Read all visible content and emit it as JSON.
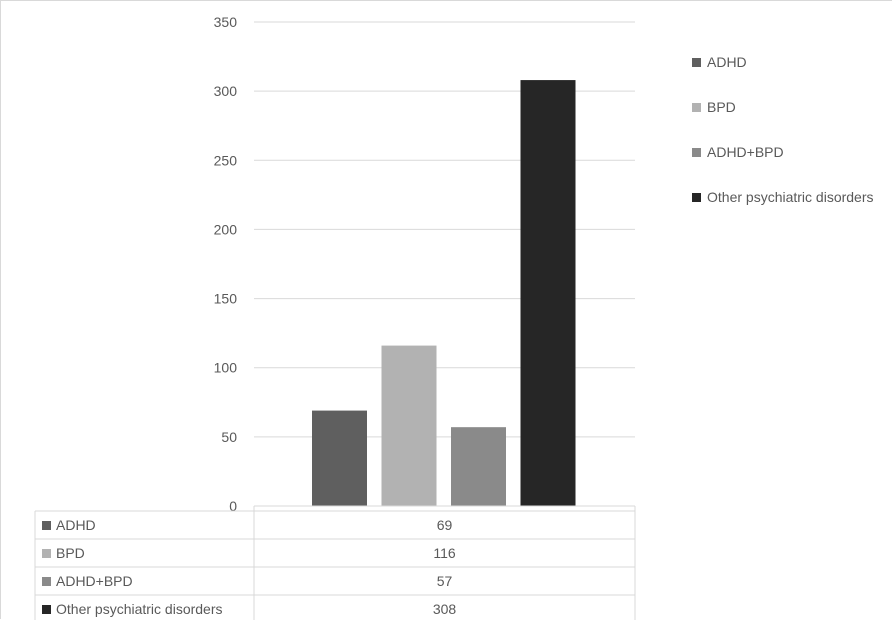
{
  "chart_data": {
    "type": "bar",
    "title": "",
    "xlabel": "",
    "ylabel": "",
    "ylim": [
      0,
      350
    ],
    "yticks": [
      0,
      50,
      100,
      150,
      200,
      250,
      300,
      350
    ],
    "grid": true,
    "legend_position": "right",
    "has_data_table": true,
    "series": [
      {
        "name": "ADHD",
        "value": 69,
        "color": "#5f5f5f"
      },
      {
        "name": "BPD",
        "value": 116,
        "color": "#b2b2b2"
      },
      {
        "name": "ADHD+BPD",
        "value": 57,
        "color": "#8a8a8a"
      },
      {
        "name": "Other psychiatric disorders",
        "value": 308,
        "color": "#262626"
      }
    ]
  }
}
